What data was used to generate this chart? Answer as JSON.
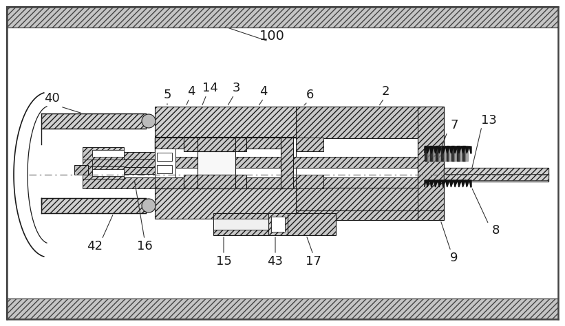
{
  "fig_width": 8.21,
  "fig_height": 4.74,
  "dpi": 100,
  "lc": "#1a1a1a",
  "hatch_fc": "#d8d8d8",
  "white": "#ffffff",
  "bg": "#f0f0f0"
}
